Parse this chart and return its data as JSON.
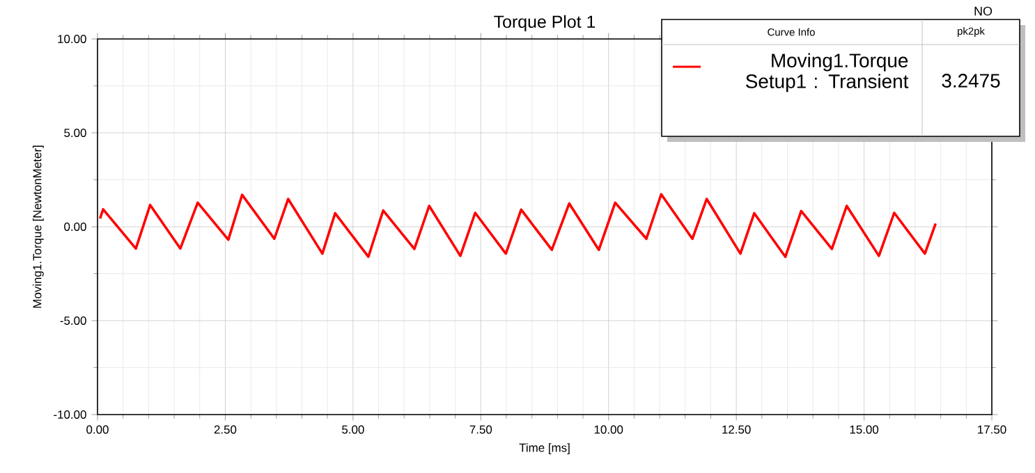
{
  "chart_data": {
    "type": "line",
    "title": "Torque Plot 1",
    "xlabel": "Time [ms]",
    "ylabel": "Moving1.Torque [NewtonMeter]",
    "x": [
      0.05,
      0.11,
      0.75,
      1.03,
      1.62,
      1.96,
      2.56,
      2.83,
      3.46,
      3.73,
      4.4,
      4.65,
      5.3,
      5.59,
      6.2,
      6.49,
      7.1,
      7.39,
      7.99,
      8.29,
      8.89,
      9.23,
      9.81,
      10.13,
      10.74,
      11.03,
      11.64,
      11.92,
      12.58,
      12.85,
      13.46,
      13.77,
      14.37,
      14.66,
      15.29,
      15.59,
      16.19,
      16.4
    ],
    "series": [
      {
        "name": "Moving1.Torque Setup1 : Transient",
        "color": "#ff0000",
        "values": [
          0.44,
          0.93,
          -1.16,
          1.16,
          -1.16,
          1.28,
          -0.69,
          1.7,
          -0.64,
          1.48,
          -1.43,
          0.72,
          -1.6,
          0.87,
          -1.18,
          1.11,
          -1.55,
          0.74,
          -1.43,
          0.91,
          -1.23,
          1.24,
          -1.23,
          1.28,
          -0.64,
          1.73,
          -0.64,
          1.48,
          -1.43,
          0.72,
          -1.6,
          0.84,
          -1.18,
          1.11,
          -1.55,
          0.74,
          -1.43,
          0.17
        ]
      }
    ],
    "xlim": [
      0,
      17.5
    ],
    "ylim": [
      -10,
      10
    ],
    "xticks": [
      {
        "value": 0,
        "label": "0.00"
      },
      {
        "value": 2.5,
        "label": "2.50"
      },
      {
        "value": 5,
        "label": "5.00"
      },
      {
        "value": 7.5,
        "label": "7.50"
      },
      {
        "value": 10,
        "label": "10.00"
      },
      {
        "value": 12.5,
        "label": "12.50"
      },
      {
        "value": 15,
        "label": "15.00"
      },
      {
        "value": 17.5,
        "label": "17.50"
      }
    ],
    "yticks": [
      {
        "value": -10,
        "label": "-10.00"
      },
      {
        "value": -5,
        "label": "-5.00"
      },
      {
        "value": 0,
        "label": "0.00"
      },
      {
        "value": 5,
        "label": "5.00"
      },
      {
        "value": 10,
        "label": "10.00"
      }
    ],
    "grid": true,
    "legend": "top right",
    "marker": "none",
    "line_style": "solid",
    "annotations": [
      "NO",
      "Curve Info",
      "pk2pk",
      "3.2475"
    ]
  }
}
